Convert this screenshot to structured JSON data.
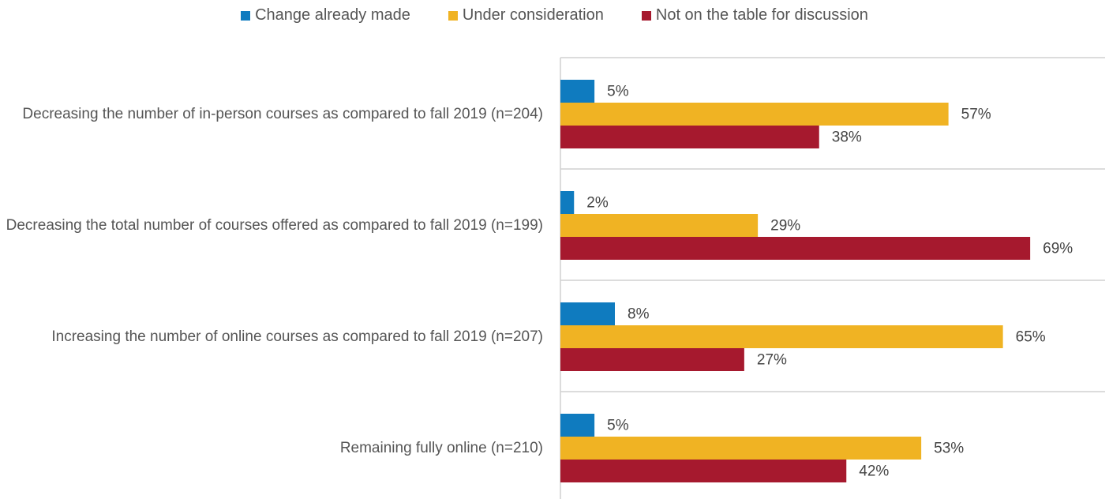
{
  "chart_data": {
    "type": "hbar",
    "categories": [
      "Decreasing the number of in-person courses as compared to fall 2019 (n=204)",
      "Decreasing the total number of courses offered as compared to fall 2019 (n=199)",
      "Increasing the number of online courses as compared to fall 2019 (n=207)",
      "Remaining fully online (n=210)"
    ],
    "series": [
      {
        "name": "Change already made",
        "color": "#0f7bbf",
        "values": [
          5,
          2,
          8,
          5
        ],
        "value_labels": [
          "5%",
          "2%",
          "8%",
          "5%"
        ]
      },
      {
        "name": "Under consideration",
        "color": "#f0b323",
        "values": [
          57,
          29,
          65,
          53
        ],
        "value_labels": [
          "57%",
          "29%",
          "65%",
          "53%"
        ]
      },
      {
        "name": "Not on the table for discussion",
        "color": "#a6192e",
        "values": [
          38,
          69,
          27,
          42
        ],
        "value_labels": [
          "38%",
          "69%",
          "27%",
          "42%"
        ]
      }
    ],
    "xlim": [
      0,
      80
    ],
    "legend": "top"
  }
}
